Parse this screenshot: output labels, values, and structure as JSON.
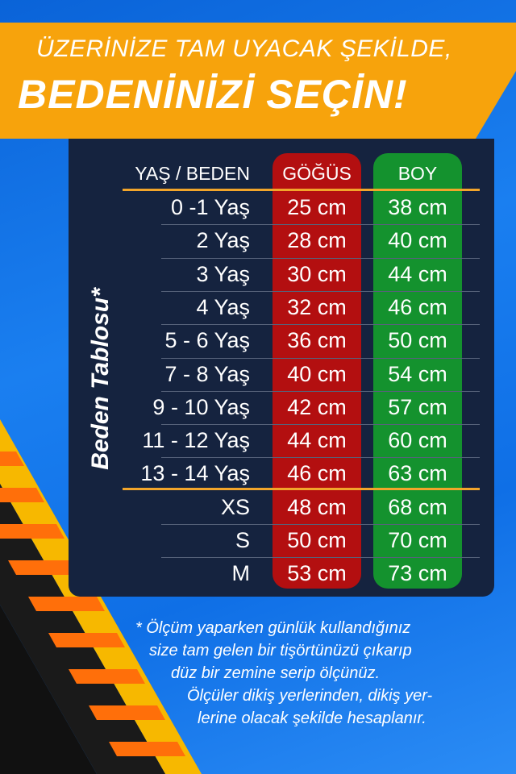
{
  "banner": {
    "line1": "ÜZERİNİZE TAM UYACAK ŞEKİLDE,",
    "line2": "BEDENİNİZİ SEÇİN!"
  },
  "side_label": "Beden Tablosu*",
  "table": {
    "headers": [
      "YAŞ / BEDEN",
      "GÖĞÜS",
      "BOY"
    ],
    "rows": [
      {
        "size": "0 -1 Yaş",
        "chest": "25 cm",
        "length": "38 cm"
      },
      {
        "size": "2 Yaş",
        "chest": "28 cm",
        "length": "40 cm"
      },
      {
        "size": "3 Yaş",
        "chest": "30 cm",
        "length": "44 cm"
      },
      {
        "size": "4 Yaş",
        "chest": "32 cm",
        "length": "46 cm"
      },
      {
        "size": "5 - 6 Yaş",
        "chest": "36 cm",
        "length": "50 cm"
      },
      {
        "size": "7 - 8 Yaş",
        "chest": "40 cm",
        "length": "54 cm"
      },
      {
        "size": "9 - 10 Yaş",
        "chest": "42 cm",
        "length": "57 cm"
      },
      {
        "size": "11 - 12 Yaş",
        "chest": "44 cm",
        "length": "60 cm"
      },
      {
        "size": "13 - 14 Yaş",
        "chest": "46 cm",
        "length": "63 cm"
      },
      {
        "size": "XS",
        "chest": "48 cm",
        "length": "68 cm"
      },
      {
        "size": "S",
        "chest": "50 cm",
        "length": "70 cm"
      },
      {
        "size": "M",
        "chest": "53 cm",
        "length": "73 cm"
      }
    ]
  },
  "note": [
    "* Ölçüm yaparken günlük kullandığınız",
    "size tam gelen bir tişörtünüzü çıkarıp",
    "düz bir zemine serip ölçünüz.",
    "Ölçüler dikiş yerlerinden, dikiş yer-",
    "lerine olacak şekilde hesaplanır."
  ],
  "colors": {
    "banner": "#f7a30c",
    "chest_column": "#b30f10",
    "length_column": "#14922e",
    "panel": "#15233f",
    "accent_line": "#f2a52b"
  }
}
